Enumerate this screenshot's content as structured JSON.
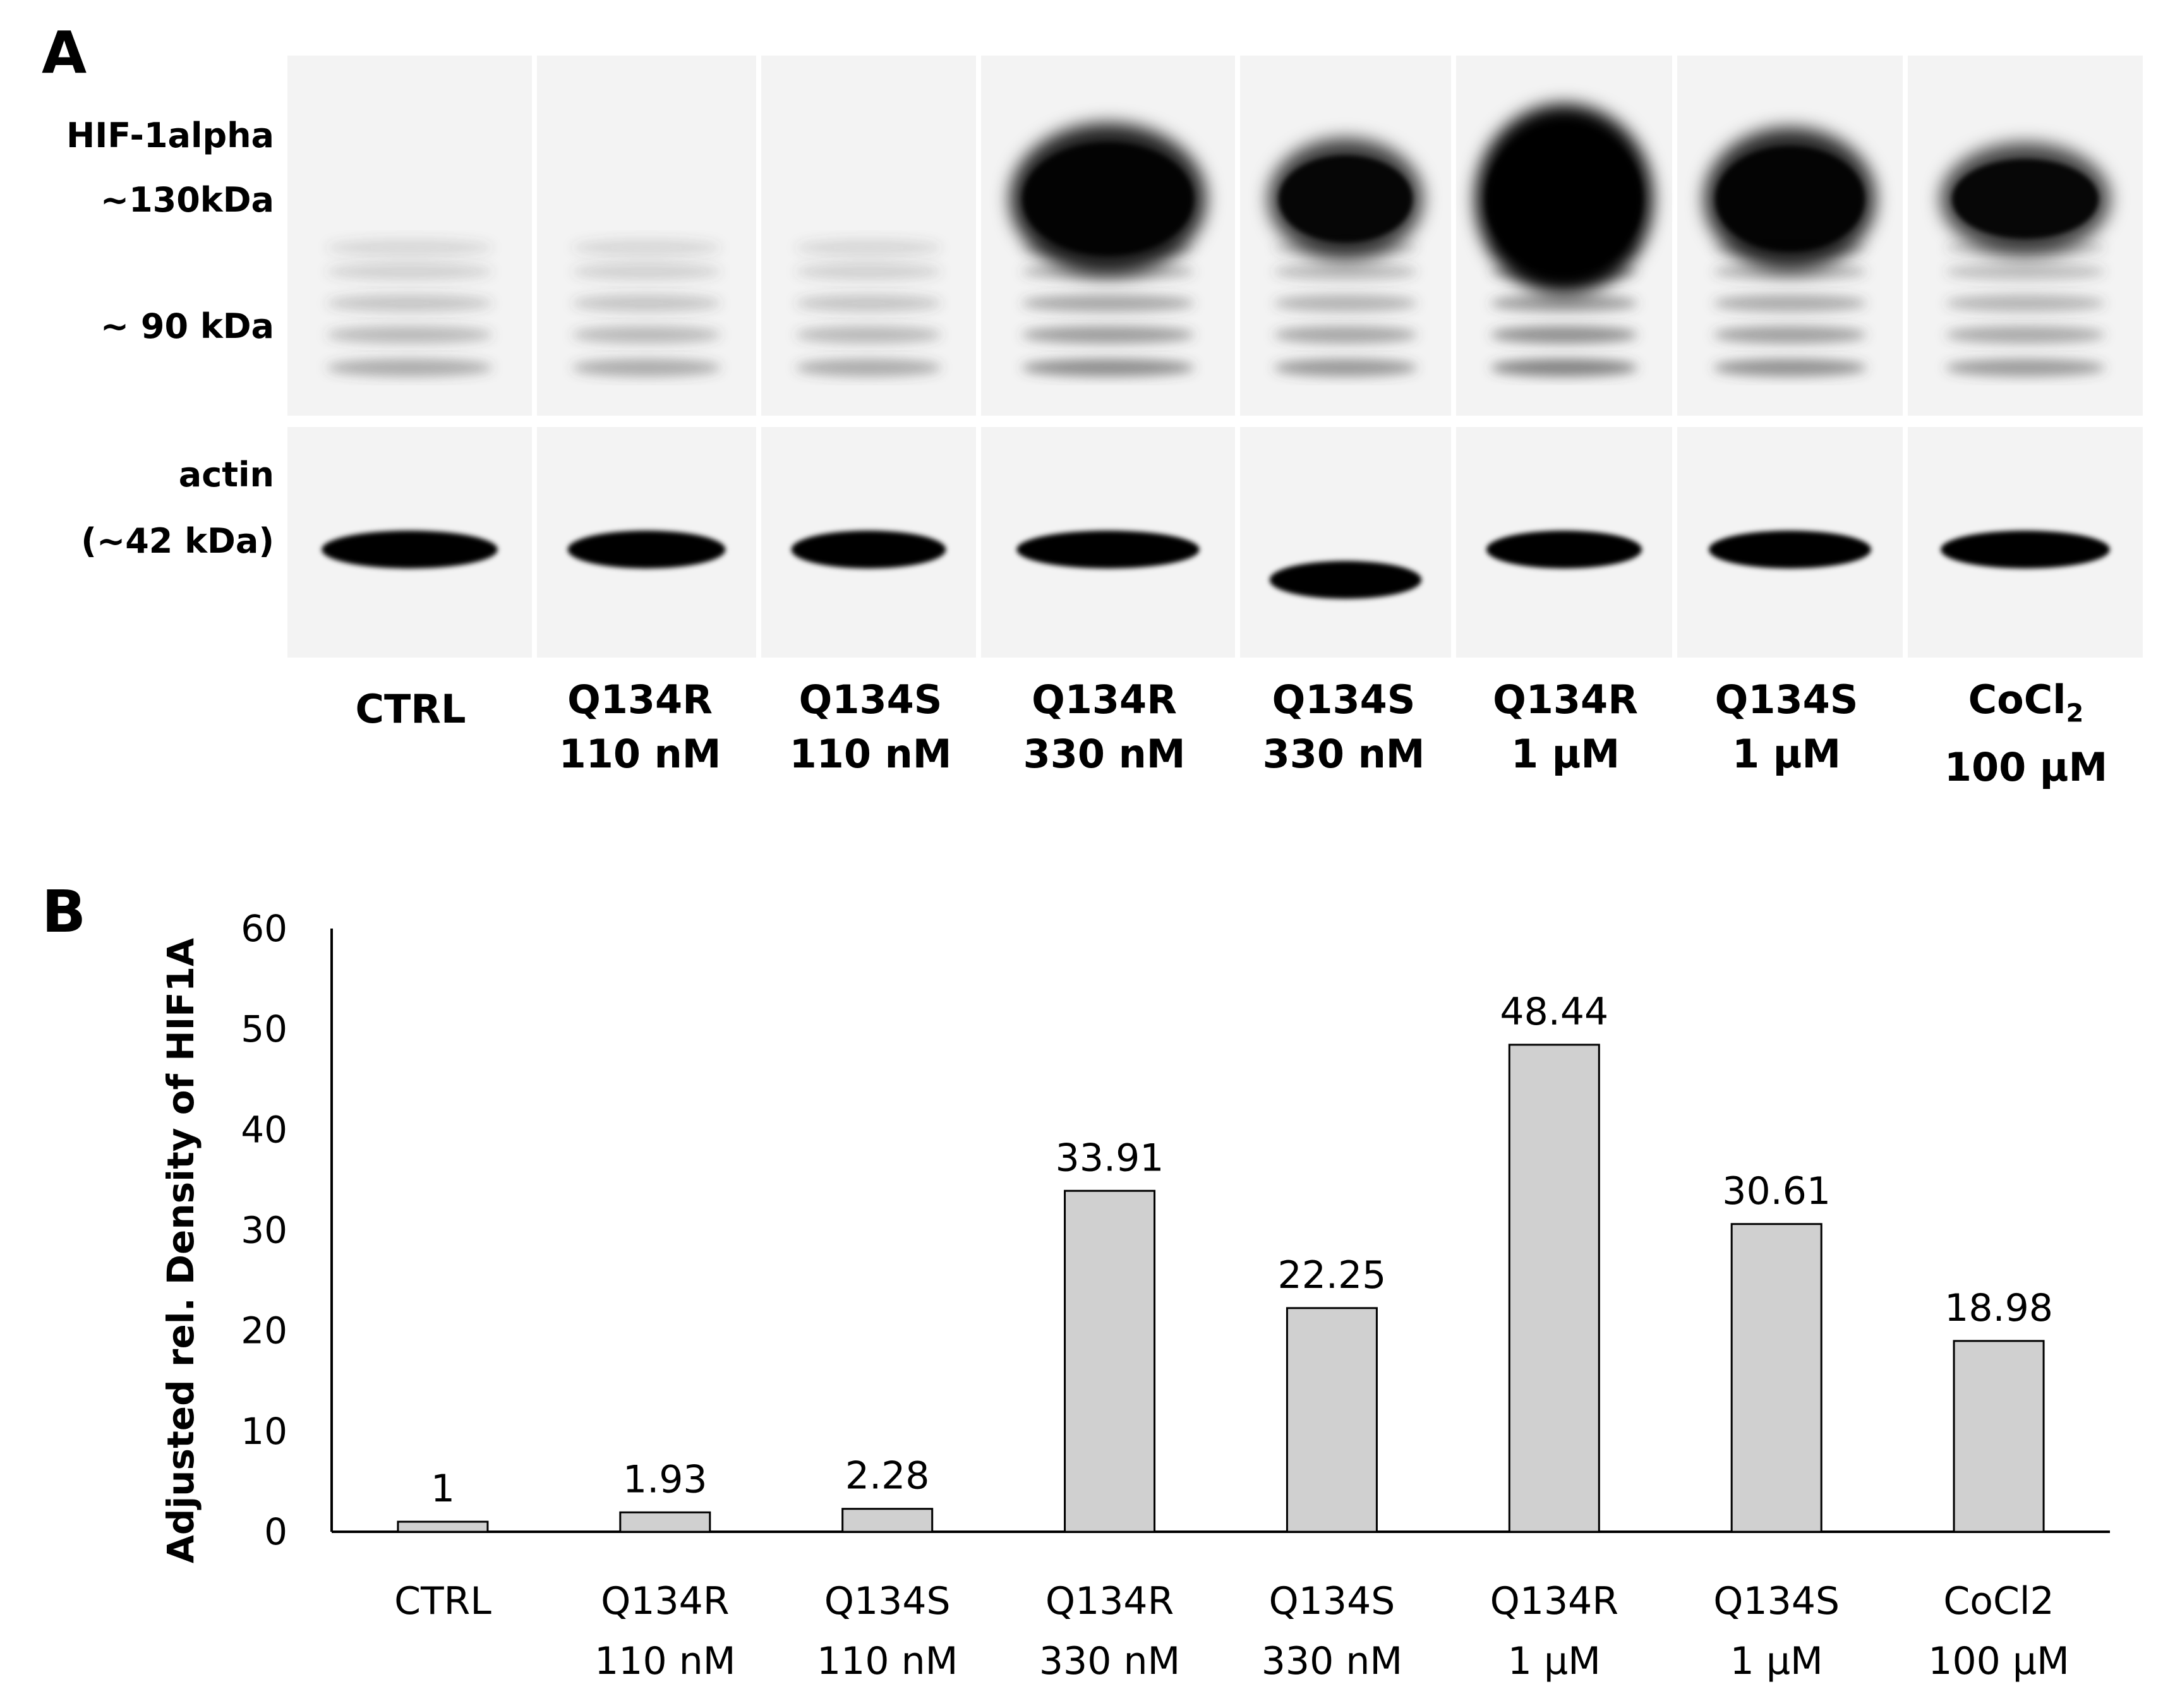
{
  "panel_a": {
    "letter": "A",
    "hif_label": "HIF-1alpha",
    "marker_130": "~130kDa",
    "marker_90": "~ 90 kDa",
    "actin_label": "actin",
    "actin_kda": "(~42 kDa)",
    "lanes": [
      {
        "l1": "CTRL",
        "l2": "",
        "hif_intensity": 0.0
      },
      {
        "l1": "Q134R",
        "l2": "110 nM",
        "hif_intensity": 0.02
      },
      {
        "l1": "Q134S",
        "l2": "110 nM",
        "hif_intensity": 0.03
      },
      {
        "l1": "Q134R",
        "l2": "330 nM",
        "hif_intensity": 0.7
      },
      {
        "l1": "Q134S",
        "l2": "330 nM",
        "hif_intensity": 0.46
      },
      {
        "l1": "Q134R",
        "l2": "1 μM",
        "hif_intensity": 1.0
      },
      {
        "l1": "Q134S",
        "l2": "1 μM",
        "hif_intensity": 0.63
      },
      {
        "l1": "CoCl",
        "l1_sub": "2",
        "l2": "100 μM",
        "hif_intensity": 0.39
      }
    ]
  },
  "panel_b": {
    "letter": "B"
  },
  "chart_data": {
    "type": "bar",
    "categories": [
      "CTRL",
      "Q134R 110 nM",
      "Q134S 110 nM",
      "Q134R 330 nM",
      "Q134S 330 nM",
      "Q134R 1 μM",
      "Q134S 1 μM",
      "CoCl2 100 μM"
    ],
    "category_lines": [
      [
        "CTRL"
      ],
      [
        "Q134R",
        "110 nM"
      ],
      [
        "Q134S",
        "110 nM"
      ],
      [
        "Q134R",
        "330 nM"
      ],
      [
        "Q134S",
        "330 nM"
      ],
      [
        "Q134R",
        "1 μM"
      ],
      [
        "Q134S",
        "1 μM"
      ],
      [
        "CoCl2",
        "100 μM"
      ]
    ],
    "values": [
      1,
      1.93,
      2.28,
      33.91,
      22.25,
      48.44,
      30.61,
      18.98
    ],
    "data_labels": [
      "1",
      "1.93",
      "2.28",
      "33.91",
      "22.25",
      "48.44",
      "30.61",
      "18.98"
    ],
    "ylabel": "Adjusted rel. Density of HIF1A",
    "xlabel": "",
    "title": "",
    "ylim": [
      0,
      60
    ],
    "yticks": [
      0,
      10,
      20,
      30,
      40,
      50,
      60
    ],
    "grid": false,
    "bar_color": "#d0d0d0",
    "bar_edge_color": "#000000"
  }
}
